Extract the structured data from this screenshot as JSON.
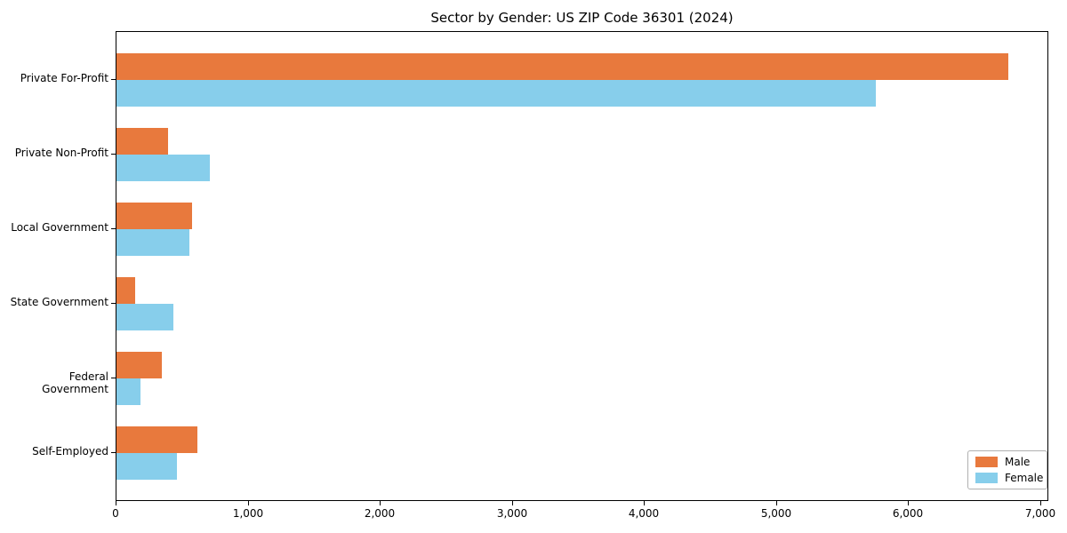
{
  "chart_data": {
    "type": "bar",
    "orientation": "horizontal",
    "title": "Sector by Gender: US ZIP Code 36301 (2024)",
    "categories": [
      "Private For-Profit",
      "Private Non-Profit",
      "Local Government",
      "State Government",
      "Federal Government",
      "Self-Employed"
    ],
    "series": [
      {
        "name": "Male",
        "color": "#e8793d",
        "values": [
          6750,
          390,
          570,
          140,
          340,
          610
        ]
      },
      {
        "name": "Female",
        "color": "#87ceeb",
        "values": [
          5750,
          710,
          550,
          430,
          180,
          460
        ]
      }
    ],
    "xlabel": "",
    "ylabel": "",
    "xlim": [
      0,
      7000
    ],
    "xticks": [
      0,
      1000,
      2000,
      3000,
      4000,
      5000,
      6000,
      7000
    ],
    "xtick_labels": [
      "0",
      "1,000",
      "2,000",
      "3,000",
      "4,000",
      "5,000",
      "6,000",
      "7,000"
    ],
    "grid": false,
    "legend": {
      "position": "lower right",
      "entries": [
        "Male",
        "Female"
      ]
    },
    "colors": {
      "male": "#e8793d",
      "female": "#87ceeb",
      "axis": "#000000",
      "background": "#ffffff"
    }
  }
}
